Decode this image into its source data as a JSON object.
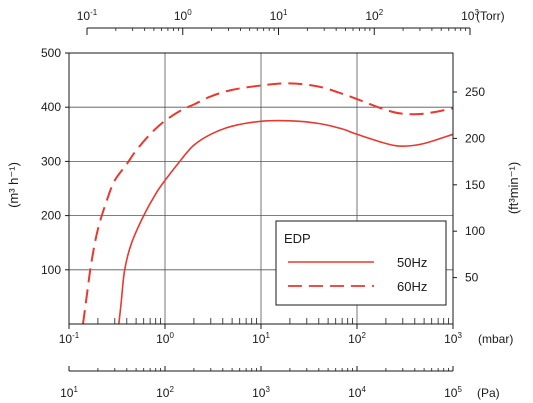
{
  "chart_data": {
    "type": "line",
    "title": "",
    "xlabel": "(mbar)",
    "ylabel": "(m³ h⁻¹)",
    "ylabel_right": "(ft³min⁻¹)",
    "x_scale": "log",
    "xlim": [
      0.1,
      1000
    ],
    "ylim": [
      0,
      500
    ],
    "grid": true,
    "legend_position": "lower-right",
    "legend_title": "EDP",
    "y_ticks": [
      100,
      200,
      300,
      400,
      500
    ],
    "y_right_ticks": [
      50,
      100,
      150,
      200,
      250
    ],
    "x_decades_mbar": [
      -1,
      0,
      1,
      2,
      3
    ],
    "x_decades_torr": [
      -1,
      0,
      1,
      2,
      3
    ],
    "x_decades_pa": [
      1,
      2,
      3,
      4,
      5
    ],
    "units": {
      "torr": "(Torr)",
      "mbar": "(mbar)",
      "pa": "(Pa)"
    },
    "series": [
      {
        "name": "50Hz",
        "style": "solid",
        "color": "#e8382f",
        "x": [
          0.33,
          0.35,
          0.38,
          0.45,
          0.6,
          0.8,
          1,
          1.5,
          2,
          3,
          5,
          10,
          20,
          40,
          70,
          100,
          200,
          300,
          500,
          1000
        ],
        "y": [
          0,
          40,
          100,
          150,
          200,
          240,
          265,
          305,
          330,
          350,
          365,
          374,
          375,
          370,
          360,
          350,
          333,
          328,
          333,
          350
        ]
      },
      {
        "name": "60Hz",
        "style": "dashed",
        "color": "#e8382f",
        "x": [
          0.14,
          0.15,
          0.17,
          0.2,
          0.25,
          0.3,
          0.4,
          0.5,
          0.7,
          1,
          1.5,
          2,
          3,
          5,
          10,
          20,
          40,
          70,
          100,
          200,
          300,
          500,
          1000
        ],
        "y": [
          0,
          40,
          110,
          175,
          230,
          265,
          295,
          320,
          350,
          375,
          395,
          405,
          420,
          432,
          440,
          444,
          438,
          425,
          415,
          395,
          388,
          388,
          398
        ]
      }
    ]
  }
}
